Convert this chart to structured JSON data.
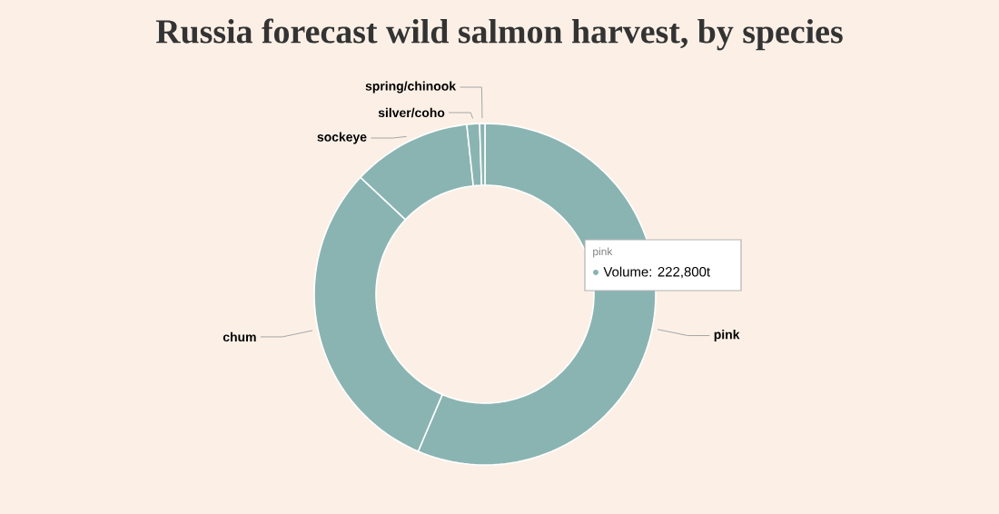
{
  "chart_data": {
    "type": "donut",
    "title": "Russia forecast wild salmon harvest, by species",
    "categories": [
      "pink",
      "chum",
      "sockeye",
      "silver/coho",
      "spring/chinook"
    ],
    "values": [
      56.4,
      30.6,
      11.3,
      1.2,
      0.5
    ],
    "colors": [
      "#8ab4b2",
      "#8ab4b2",
      "#8ab4b2",
      "#8ab4b2",
      "#8ab4b2"
    ],
    "annotations": [
      "pink",
      "Volume: 222,800t"
    ]
  }
}
